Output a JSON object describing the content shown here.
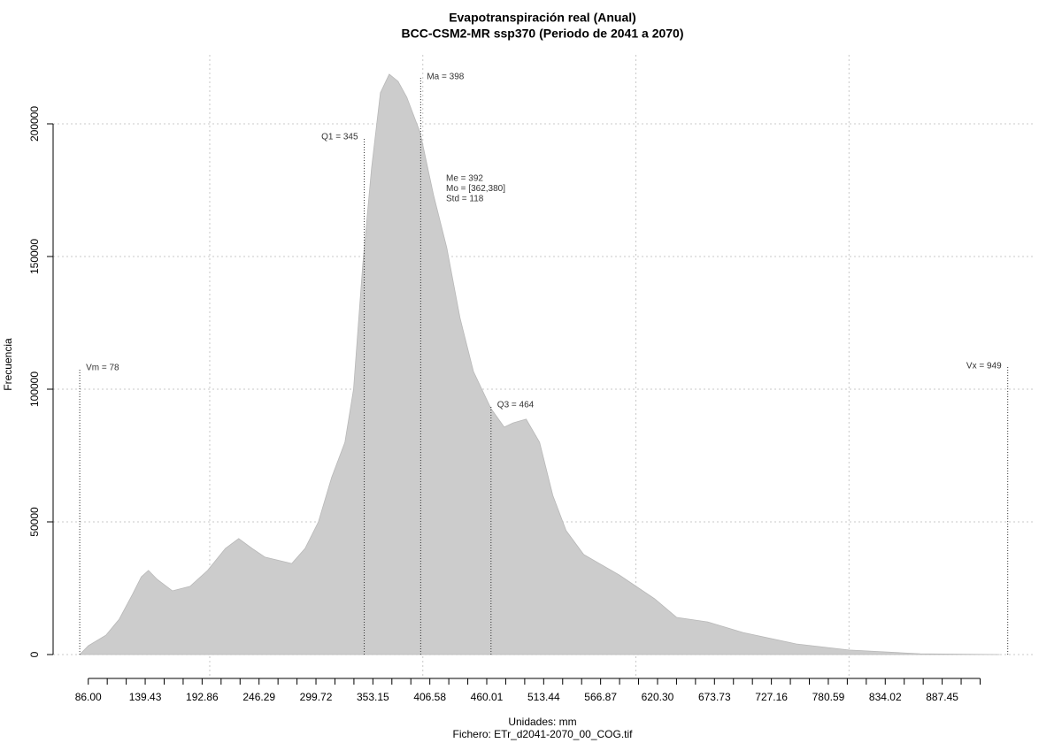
{
  "chart_data": {
    "type": "area",
    "title": "Evapotranspiración real (Anual)",
    "subtitle": "BCC-CSM2-MR ssp370 (Periodo de 2041 a 2070)",
    "x_label": "Unidades: mm",
    "caption": "Fichero: ETr_d2041-2070_00_COG.tif",
    "y_label": "Frecuencia",
    "color": "#cccccc",
    "x": [
      78,
      86,
      102.6,
      115,
      127.5,
      135.8,
      142.5,
      150.8,
      164.9,
      181.5,
      198,
      214.7,
      227.2,
      239.7,
      252,
      277,
      289.5,
      302,
      314.4,
      326.9,
      335,
      343.6,
      351.9,
      360.2,
      368.5,
      376.8,
      385,
      397.5,
      410,
      422.5,
      435,
      447.5,
      464,
      476.4,
      484.7,
      497,
      509.6,
      522,
      534.5,
      551,
      584.3,
      617.6,
      638.3,
      667.4,
      700.6,
      750.5,
      800,
      866.8,
      941.5
    ],
    "values": [
      0,
      3300,
      7300,
      13300,
      22700,
      29300,
      31700,
      28300,
      24000,
      25700,
      31700,
      40000,
      43700,
      40000,
      36700,
      34300,
      40000,
      50000,
      66700,
      80000,
      100000,
      146700,
      183300,
      211700,
      218700,
      216000,
      210000,
      196700,
      173300,
      153300,
      126700,
      106700,
      92700,
      85700,
      87300,
      88700,
      80000,
      60000,
      46700,
      37700,
      30000,
      21000,
      14000,
      12300,
      8300,
      4000,
      1700,
      300,
      0
    ],
    "xlim": [
      53,
      975
    ],
    "ylim": [
      -9000,
      226000
    ],
    "yticks": [
      0,
      50000,
      100000,
      150000,
      200000
    ],
    "xticks": [
      {
        "value": 86,
        "label": "86.00"
      },
      139.43,
      192.86,
      246.29,
      299.72,
      353.15,
      406.58,
      460.01,
      513.44,
      566.87,
      {
        "value": 620.3,
        "label": "620.30"
      },
      673.73,
      727.16,
      780.59,
      834.02,
      887.45
    ],
    "xminor_ticks": [
      103.81,
      121.62,
      157.24,
      175.05,
      210.67,
      228.48,
      264.1,
      281.91,
      317.53,
      335.34,
      370.96,
      388.77,
      424.39,
      442.2,
      477.82,
      495.63,
      531.25,
      549.06,
      584.68,
      602.49,
      638.11,
      655.92,
      691.54,
      709.35,
      744.97,
      762.78,
      798.4,
      816.21,
      851.83,
      869.64,
      905.26,
      923.07
    ],
    "xgrid": [
      200,
      400,
      600,
      800
    ],
    "grid": true,
    "markers": [
      {
        "label": "Vm = 78",
        "x": 78,
        "y": 108000
      },
      {
        "label": "Q1 = 345",
        "x": 345,
        "y": 195000
      },
      {
        "label": "Ma = 398",
        "x": 398,
        "y": 217700
      },
      {
        "label": "Q3 = 464",
        "x": 464,
        "y": 94000
      },
      {
        "label": "Vx = 949",
        "x": 949,
        "y": 108700
      }
    ],
    "stats": [
      "Me = 392",
      "Mo = [362,380]",
      "Std = 118"
    ]
  }
}
